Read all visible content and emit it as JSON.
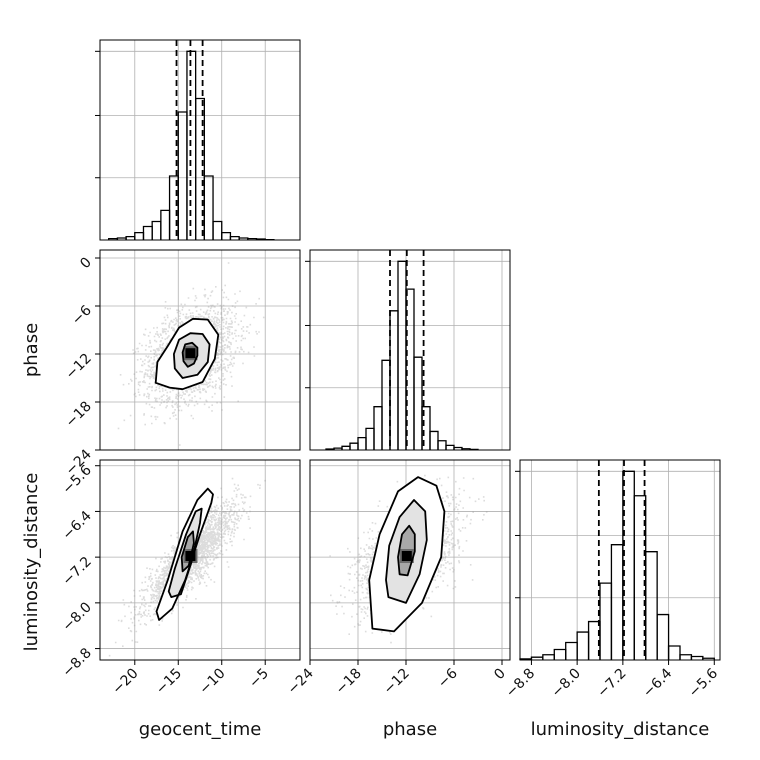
{
  "chart_data": {
    "type": "corner",
    "parameters": [
      "geocent_time",
      "phase",
      "luminosity_distance"
    ],
    "axis_labels": {
      "x": [
        "geocent_time",
        "phase",
        "luminosity_distance"
      ],
      "y": [
        "phase",
        "luminosity_distance"
      ]
    },
    "grid": true,
    "ranges": {
      "geocent_time": [
        -24,
        -1
      ],
      "phase": [
        -24,
        1
      ],
      "luminosity_distance": [
        -9.0,
        -5.5
      ]
    },
    "ticks": {
      "geocent_time": {
        "values": [
          -20,
          -15,
          -10,
          -5
        ],
        "labels": [
          "−20",
          "−15",
          "−10",
          "−5"
        ]
      },
      "phase": {
        "values": [
          -24,
          -18,
          -12,
          -6,
          0
        ],
        "labels": [
          "−24",
          "−18",
          "−12",
          "−6",
          "0"
        ]
      },
      "luminosity_distance": {
        "values": [
          -8.8,
          -8.0,
          -7.2,
          -6.4,
          -5.6
        ],
        "labels": [
          "−8.8",
          "−8.0",
          "−7.2",
          "−6.4",
          "−5.6"
        ]
      }
    },
    "quantiles": {
      "geocent_time": [
        -15.2,
        -13.6,
        -12.2
      ],
      "phase": [
        -14.0,
        -11.9,
        -9.8
      ],
      "luminosity_distance": [
        -7.62,
        -7.18,
        -6.82
      ]
    },
    "histograms": [
      {
        "param": "geocent_time",
        "bin_edges": [
          -23,
          -22,
          -21,
          -20,
          -19,
          -18,
          -17,
          -16,
          -15,
          -14,
          -13,
          -12,
          -11,
          -10,
          -9,
          -8,
          -7,
          -6,
          -5,
          -4,
          -3
        ],
        "counts": [
          4,
          6,
          10,
          22,
          40,
          55,
          88,
          190,
          380,
          560,
          420,
          190,
          55,
          22,
          10,
          6,
          4,
          3,
          1,
          0
        ]
      },
      {
        "param": "phase",
        "bin_edges": [
          -23,
          -22,
          -21,
          -20,
          -19,
          -18,
          -17,
          -16,
          -15,
          -14,
          -13,
          -12,
          -11,
          -10,
          -9,
          -8,
          -7,
          -6,
          -5,
          -4,
          -3,
          -2,
          -1,
          0
        ],
        "counts": [
          0,
          3,
          6,
          12,
          22,
          40,
          70,
          140,
          290,
          450,
          610,
          520,
          300,
          140,
          60,
          30,
          15,
          8,
          4,
          2,
          0,
          0,
          0
        ]
      },
      {
        "param": "luminosity_distance",
        "bin_edges": [
          -9.0,
          -8.8,
          -8.6,
          -8.4,
          -8.2,
          -8.0,
          -7.8,
          -7.6,
          -7.4,
          -7.2,
          -7.0,
          -6.8,
          -6.6,
          -6.4,
          -6.2,
          -6.0,
          -5.8,
          -5.6
        ],
        "counts": [
          3,
          8,
          15,
          30,
          50,
          80,
          110,
          220,
          330,
          540,
          470,
          310,
          130,
          40,
          15,
          10,
          5
        ]
      }
    ],
    "pairs": [
      {
        "x": "geocent_time",
        "y": "phase",
        "center": [
          -13.6,
          -11.9
        ],
        "spread": [
          2.6,
          3.0
        ],
        "rho": 0.35,
        "contours": [
          [
            [
              -13.9,
              -13.6
            ],
            [
              -13.2,
              -13.2
            ],
            [
              -12.8,
              -12.2
            ],
            [
              -12.8,
              -11.2
            ],
            [
              -13.4,
              -10.6
            ],
            [
              -14.2,
              -10.8
            ],
            [
              -14.5,
              -11.8
            ],
            [
              -14.4,
              -12.9
            ]
          ],
          [
            [
              -14.5,
              -15.0
            ],
            [
              -12.8,
              -14.6
            ],
            [
              -11.6,
              -13.0
            ],
            [
              -11.4,
              -10.8
            ],
            [
              -12.2,
              -9.5
            ],
            [
              -13.6,
              -9.4
            ],
            [
              -14.9,
              -10.2
            ],
            [
              -15.5,
              -12.0
            ],
            [
              -15.4,
              -13.8
            ]
          ],
          [
            [
              -16.0,
              -16.2
            ],
            [
              -14.5,
              -16.4
            ],
            [
              -12.2,
              -15.5
            ],
            [
              -10.8,
              -12.6
            ],
            [
              -10.4,
              -9.6
            ],
            [
              -11.6,
              -7.7
            ],
            [
              -13.3,
              -7.6
            ],
            [
              -14.9,
              -8.7
            ],
            [
              -16.2,
              -11.0
            ],
            [
              -17.4,
              -13.0
            ],
            [
              -17.6,
              -15.6
            ]
          ]
        ]
      },
      {
        "x": "geocent_time",
        "y": "luminosity_distance",
        "center": [
          -13.6,
          -7.18
        ],
        "spread": [
          2.6,
          0.45
        ],
        "rho": 0.85,
        "contours": [
          [
            [
              -14.5,
              -7.45
            ],
            [
              -13.8,
              -7.35
            ],
            [
              -13.2,
              -6.95
            ],
            [
              -13.3,
              -6.75
            ],
            [
              -13.9,
              -6.85
            ],
            [
              -14.6,
              -7.2
            ]
          ],
          [
            [
              -15.8,
              -7.9
            ],
            [
              -14.7,
              -7.85
            ],
            [
              -13.5,
              -7.3
            ],
            [
              -12.5,
              -6.6
            ],
            [
              -12.3,
              -6.35
            ],
            [
              -13.0,
              -6.4
            ],
            [
              -14.1,
              -6.8
            ],
            [
              -15.4,
              -7.4
            ],
            [
              -16.1,
              -7.8
            ]
          ],
          [
            [
              -17.2,
              -8.3
            ],
            [
              -15.7,
              -8.1
            ],
            [
              -14.2,
              -7.6
            ],
            [
              -12.5,
              -6.8
            ],
            [
              -11.2,
              -6.25
            ],
            [
              -11.0,
              -6.1
            ],
            [
              -11.6,
              -6.0
            ],
            [
              -12.8,
              -6.2
            ],
            [
              -14.5,
              -6.75
            ],
            [
              -16.2,
              -7.6
            ],
            [
              -17.5,
              -8.15
            ]
          ]
        ]
      },
      {
        "x": "phase",
        "y": "luminosity_distance",
        "center": [
          -11.9,
          -7.18
        ],
        "spread": [
          3.0,
          0.45
        ],
        "rho": 0.55,
        "contours": [
          [
            [
              -12.8,
              -7.5
            ],
            [
              -11.8,
              -7.52
            ],
            [
              -10.9,
              -7.1
            ],
            [
              -10.9,
              -6.8
            ],
            [
              -11.6,
              -6.65
            ],
            [
              -12.5,
              -6.8
            ],
            [
              -13.0,
              -7.2
            ]
          ],
          [
            [
              -14.2,
              -7.9
            ],
            [
              -12.0,
              -8.0
            ],
            [
              -10.3,
              -7.5
            ],
            [
              -9.4,
              -6.9
            ],
            [
              -9.6,
              -6.4
            ],
            [
              -11.0,
              -6.2
            ],
            [
              -12.8,
              -6.5
            ],
            [
              -14.1,
              -7.0
            ],
            [
              -14.5,
              -7.6
            ]
          ],
          [
            [
              -16.2,
              -8.45
            ],
            [
              -13.5,
              -8.5
            ],
            [
              -10.0,
              -8.0
            ],
            [
              -7.6,
              -7.2
            ],
            [
              -7.2,
              -6.4
            ],
            [
              -8.2,
              -5.95
            ],
            [
              -10.5,
              -5.8
            ],
            [
              -13.0,
              -6.05
            ],
            [
              -15.3,
              -6.8
            ],
            [
              -16.6,
              -7.6
            ]
          ]
        ]
      }
    ]
  }
}
